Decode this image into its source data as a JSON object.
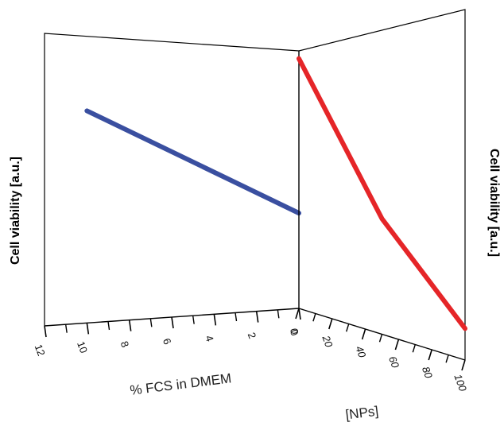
{
  "chart_data": [
    {
      "type": "line",
      "panel": "left",
      "ylabel": "Cell viability [a.u.]",
      "xlabel": "% FCS in DMEM",
      "xlim": [
        12,
        0
      ],
      "x_ticks": [
        "12",
        "10",
        "8",
        "6",
        "4",
        "2",
        "0"
      ],
      "series": [
        {
          "color": "#3a4fa0",
          "x": [
            10,
            0
          ],
          "y": [
            0.74,
            0.37
          ]
        }
      ]
    },
    {
      "type": "line",
      "panel": "right",
      "ylabel": "Cell viability [a.u.]",
      "xlabel": "[NPs]",
      "xlim": [
        0,
        100
      ],
      "x_ticks": [
        "0",
        "20",
        "40",
        "60",
        "80",
        "100"
      ],
      "series": [
        {
          "color": "#e52528",
          "x": [
            0,
            50,
            100
          ],
          "y": [
            0.97,
            0.38,
            0.09
          ]
        }
      ]
    }
  ]
}
